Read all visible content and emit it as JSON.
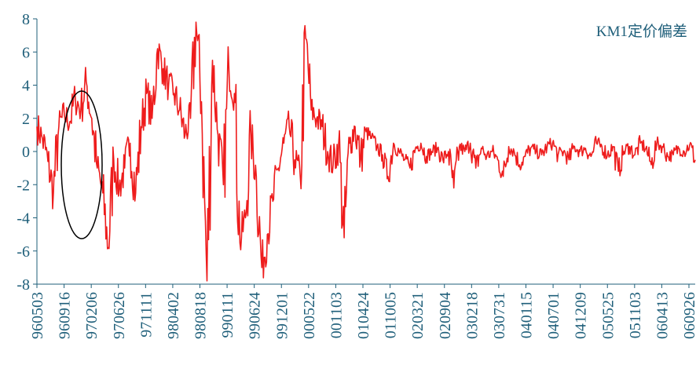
{
  "chart_data": {
    "type": "line",
    "title": "",
    "xlabel": "",
    "ylabel": "",
    "ylim": [
      -8,
      8
    ],
    "y_ticks": [
      "8",
      "6",
      "4",
      "2",
      "0",
      "-2",
      "-4",
      "-6",
      "-8"
    ],
    "x_tick_labels": [
      "960503",
      "960916",
      "970206",
      "970626",
      "971111",
      "980402",
      "980818",
      "990111",
      "990624",
      "991201",
      "000522",
      "001103",
      "010424",
      "011005",
      "020321",
      "020904",
      "030218",
      "030731",
      "040115",
      "040701",
      "041209",
      "050525",
      "051103",
      "060413",
      "060926"
    ],
    "grid": false,
    "legend": {
      "position": "top-right",
      "entries": [
        "KM1定价偏差"
      ]
    },
    "series": [
      {
        "name": "KM1定价偏差",
        "color": "#ee1c1c",
        "x_index": [
          0,
          1,
          2,
          3,
          4,
          5,
          6,
          7,
          8,
          9,
          10,
          11,
          12,
          13,
          14,
          15,
          16,
          17,
          18,
          19,
          20,
          21,
          22,
          23,
          24,
          25,
          26,
          27,
          28,
          29,
          30,
          31,
          32,
          33,
          34,
          35,
          36,
          37,
          38,
          39,
          40,
          41,
          42,
          43,
          44,
          45,
          46,
          47,
          48,
          49,
          50,
          51,
          52,
          53,
          54,
          55,
          56,
          57,
          58,
          59,
          60,
          61,
          62,
          63,
          64,
          65,
          66,
          67,
          68,
          69,
          70,
          71,
          72,
          73,
          74,
          75,
          76,
          77,
          78,
          79,
          80,
          81,
          82,
          83,
          84,
          85,
          86,
          87,
          88,
          89,
          90,
          91,
          92,
          93,
          94,
          95,
          96,
          97,
          98,
          99,
          100,
          101,
          102,
          103,
          104,
          105,
          106,
          107,
          108,
          109,
          110,
          111,
          112,
          113,
          114,
          115,
          116,
          117,
          118,
          119,
          120
        ],
        "values": [
          1.5,
          0.8,
          -0.6,
          -2.5,
          1.5,
          2.2,
          1.8,
          3.2,
          2.5,
          4.2,
          2.0,
          -1.0,
          -2.5,
          -5.8,
          -0.5,
          -2.2,
          -1.0,
          0.5,
          -2.5,
          1.5,
          3.5,
          2.0,
          6.2,
          5.0,
          4.0,
          3.5,
          2.5,
          1.0,
          2.0,
          7.8,
          3.0,
          -7.8,
          5.5,
          1.0,
          -2.0,
          5.0,
          3.5,
          -5.5,
          -4.0,
          1.0,
          -1.5,
          -7.0,
          -5.0,
          -3.0,
          -1.0,
          0.5,
          1.5,
          -0.5,
          -1.5,
          6.8,
          2.5,
          2.0,
          1.5,
          0.0,
          -0.8,
          0.5,
          -5.2,
          0.5,
          1.5,
          -0.5,
          1.2,
          0.8,
          0.3,
          -0.2,
          -1.5,
          0.5,
          0.0,
          -0.5,
          -1.0,
          0.2,
          0.5,
          -0.3,
          0.0,
          0.2,
          -0.5,
          0.0,
          -2.2,
          0.3,
          0.0,
          0.5,
          -1.0,
          0.2,
          -0.3,
          0.0,
          -0.5,
          -1.5,
          0.3,
          0.0,
          -0.8,
          -0.3,
          0.2,
          0.0,
          -0.2,
          0.3,
          0.5,
          -0.2,
          0.0,
          -0.5,
          0.3,
          0.0,
          0.2,
          -0.3,
          0.5,
          0.3,
          -0.2,
          0.3,
          -1.2,
          0.0,
          0.3,
          -0.2,
          0.5,
          0.2,
          -0.8,
          0.5,
          0.3,
          -0.3,
          -0.2,
          0.2,
          0.0,
          0.4,
          -0.5
        ]
      }
    ],
    "annotations": [
      {
        "type": "ellipse",
        "description": "circled region",
        "x_range": [
          "960916",
          "970206"
        ]
      }
    ]
  }
}
